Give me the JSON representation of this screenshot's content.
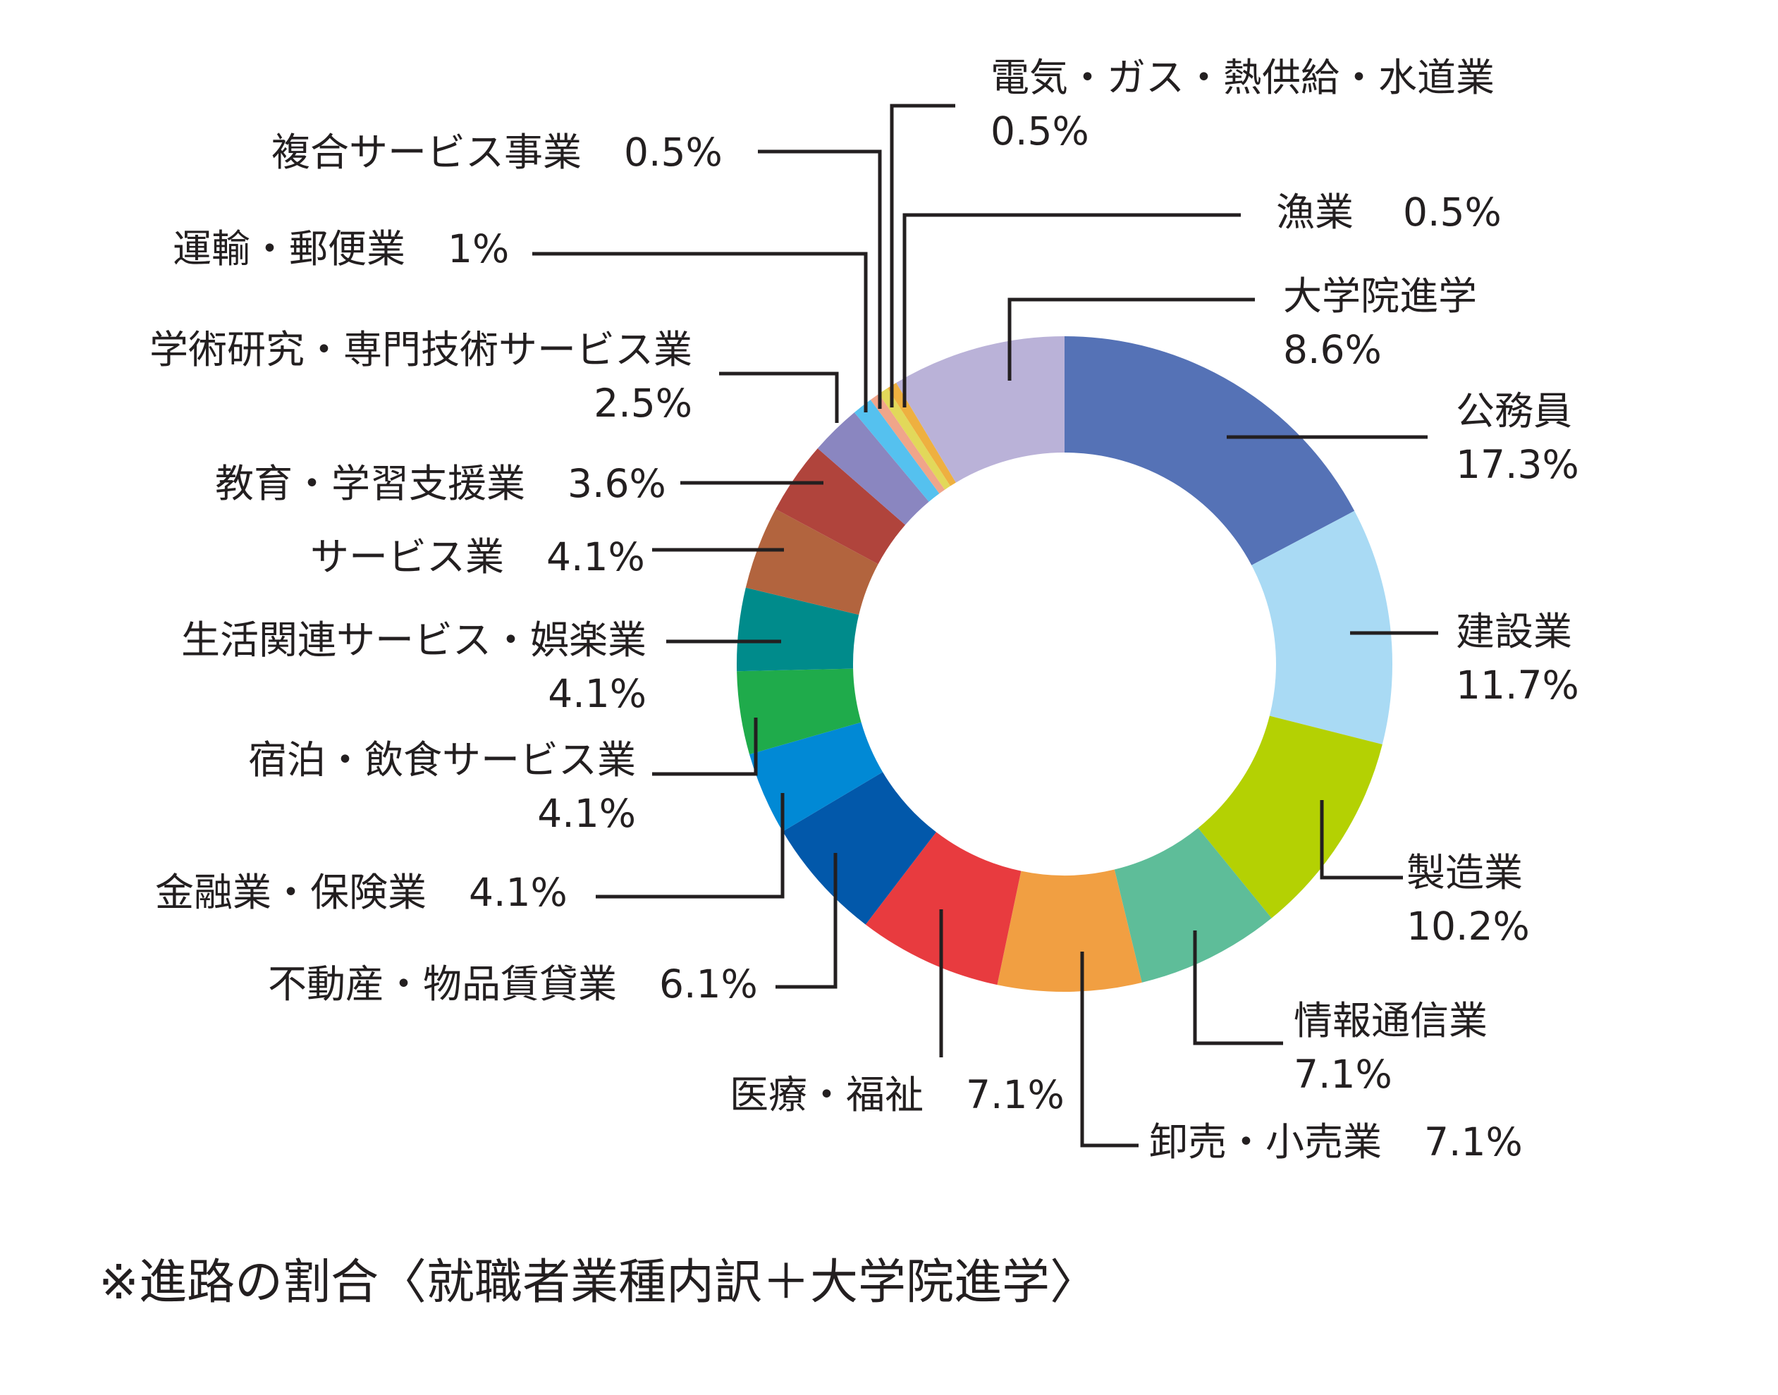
{
  "chart_data": {
    "type": "pie",
    "donut": true,
    "start": "12 o'clock, clockwise",
    "slices": [
      {
        "label": "公務員",
        "value": 17.3,
        "value_label": "17.3%",
        "color": "#5572b6"
      },
      {
        "label": "建設業",
        "value": 11.7,
        "value_label": "11.7%",
        "color": "#a9daf4"
      },
      {
        "label": "製造業",
        "value": 10.2,
        "value_label": "10.2%",
        "color": "#b4d103"
      },
      {
        "label": "情報通信業",
        "value": 7.1,
        "value_label": "7.1%",
        "color": "#5ebd99"
      },
      {
        "label": "卸売・小売業",
        "value": 7.1,
        "value_label": "7.1%",
        "color": "#f19f42"
      },
      {
        "label": "医療・福祉",
        "value": 7.1,
        "value_label": "7.1%",
        "color": "#e83b3f"
      },
      {
        "label": "不動産・物品賃貸業",
        "value": 6.1,
        "value_label": "6.1%",
        "color": "#0258aa"
      },
      {
        "label": "金融業・保険業",
        "value": 4.1,
        "value_label": "4.1%",
        "color": "#0189d5"
      },
      {
        "label": "宿泊・飲食サービス業",
        "value": 4.1,
        "value_label": "4.1%",
        "color": "#1fab4b"
      },
      {
        "label": "生活関連サービス・娯楽業",
        "value": 4.1,
        "value_label": "4.1%",
        "color": "#008b8b"
      },
      {
        "label": "サービス業",
        "value": 4.1,
        "value_label": "4.1%",
        "color": "#b2643e"
      },
      {
        "label": "教育・学習支援業",
        "value": 3.6,
        "value_label": "3.6%",
        "color": "#b0443c"
      },
      {
        "label": "学術研究・専門技術サービス業",
        "value": 2.5,
        "value_label": "2.5%",
        "color": "#8a86c0"
      },
      {
        "label": "運輸・郵便業",
        "value": 1,
        "value_label": "1%",
        "color": "#55c1ef"
      },
      {
        "label": "複合サービス事業",
        "value": 0.5,
        "value_label": "0.5%",
        "color": "#f0a58a"
      },
      {
        "label": "電気・ガス・熱供給・水道業",
        "value": 0.5,
        "value_label": "0.5%",
        "color": "#e2d85a"
      },
      {
        "label": "漁業",
        "value": 0.5,
        "value_label": "0.5%",
        "color": "#eeb040"
      },
      {
        "label": "大学院進学",
        "value": 8.6,
        "value_label": "8.6%",
        "color": "#bab2d8"
      }
    ],
    "note": "※進路の割合〈就職者業種内訳＋大学院進学〉",
    "leader_color": "#231f20"
  }
}
